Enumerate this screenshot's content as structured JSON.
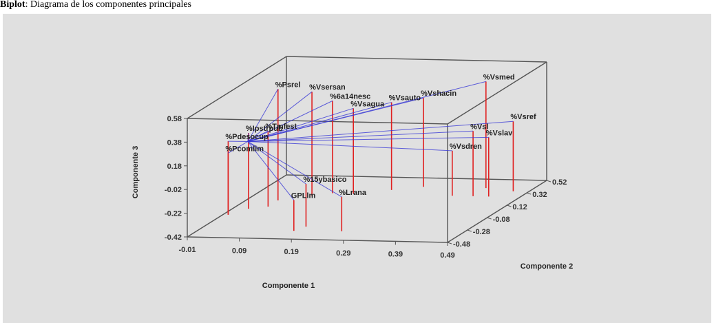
{
  "caption": {
    "prefix": "Biplot",
    "text": ": Diagrama de los componentes principales"
  },
  "chart_data": {
    "type": "scatter",
    "subtype": "3d-biplot",
    "xlabel": "Componente 1",
    "ylabel": "Componente 2",
    "zlabel": "Componente 3",
    "x_ticks": [
      "-0.01",
      "0.09",
      "0.19",
      "0.29",
      "0.39",
      "0.49"
    ],
    "y_ticks": [
      "-0.48",
      "-0.28",
      "-0.08",
      "0.12",
      "0.32",
      "0.52"
    ],
    "z_ticks": [
      "0.58",
      "0.38",
      "0.18",
      "-0.02",
      "-0.22",
      "-0.42"
    ],
    "colors": {
      "vectors": "#3a3ad6",
      "drops": "#e02020",
      "box": "#555555",
      "panel": "#e0e0e0"
    },
    "points": [
      {
        "label": "%Psrel",
        "x": 0.05,
        "y": 0.12,
        "z": 0.52
      },
      {
        "label": "%Vsersan",
        "x": 0.1,
        "y": 0.2,
        "z": 0.46
      },
      {
        "label": "%6a14nesc",
        "x": 0.13,
        "y": 0.25,
        "z": 0.36
      },
      {
        "label": "%Vsagua",
        "x": 0.17,
        "y": 0.25,
        "z": 0.3
      },
      {
        "label": "%Vsauto",
        "x": 0.23,
        "y": 0.32,
        "z": 0.32
      },
      {
        "label": "%Vshacin",
        "x": 0.28,
        "y": 0.38,
        "z": 0.33
      },
      {
        "label": "%Vsmed",
        "x": 0.4,
        "y": 0.38,
        "z": 0.48
      },
      {
        "label": "%Vsref",
        "x": 0.46,
        "y": 0.34,
        "z": 0.17
      },
      {
        "label": "%Vsl",
        "x": 0.4,
        "y": 0.25,
        "z": 0.13
      },
      {
        "label": "%Vslav",
        "x": 0.43,
        "y": 0.25,
        "z": 0.08
      },
      {
        "label": "%Vsdren",
        "x": 0.36,
        "y": 0.25,
        "z": -0.04
      },
      {
        "label": "%Pdesocup",
        "x": 0.0,
        "y": -0.12,
        "z": 0.2
      },
      {
        "label": "%Pcomlim",
        "x": 0.0,
        "y": -0.12,
        "z": 0.1
      },
      {
        "label": "%Ipstrpub",
        "x": 0.02,
        "y": -0.02,
        "z": 0.22
      },
      {
        "label": "%Tmfest",
        "x": 0.05,
        "y": 0.02,
        "z": 0.22
      },
      {
        "label": "%15ybasico",
        "x": 0.18,
        "y": -0.28,
        "z": -0.06
      },
      {
        "label": "GPLlm",
        "x": 0.17,
        "y": -0.35,
        "z": -0.16
      },
      {
        "label": "%Lrana",
        "x": 0.26,
        "y": -0.34,
        "z": -0.13
      }
    ]
  }
}
